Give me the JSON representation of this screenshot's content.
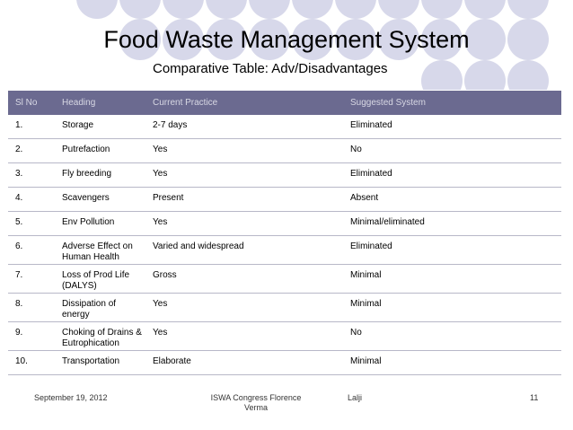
{
  "slide": {
    "title": "Food Waste Management System",
    "subtitle": "Comparative Table: Adv/Disadvantages"
  },
  "table": {
    "headers": [
      "Sl No",
      "Heading",
      "Current Practice",
      "Suggested System"
    ],
    "rows": [
      [
        "1.",
        "Storage",
        "2-7 days",
        "Eliminated"
      ],
      [
        "2.",
        "Putrefaction",
        "Yes",
        "No"
      ],
      [
        "3.",
        "Fly breeding",
        "Yes",
        "Eliminated"
      ],
      [
        "4.",
        "Scavengers",
        "Present",
        "Absent"
      ],
      [
        "5.",
        "Env Pollution",
        "Yes",
        "Minimal/eliminated"
      ],
      [
        "6.",
        "Adverse Effect on Human Health",
        "Varied and widespread",
        "Eliminated"
      ],
      [
        "7.",
        "Loss of Prod Life (DALYS)",
        "Gross",
        "Minimal"
      ],
      [
        "8.",
        "Dissipation  of energy",
        "Yes",
        "Minimal"
      ],
      [
        "9.",
        "Choking of Drains & Eutrophication",
        "Yes",
        "No"
      ],
      [
        "10.",
        "Transportation",
        "Elaborate",
        "Minimal"
      ]
    ]
  },
  "footer": {
    "date": "September 19, 2012",
    "event": "ISWA Congress Florence",
    "author_first": "Lalji",
    "author_last": "Verma",
    "page": "11"
  },
  "colors": {
    "header_bg": "#6b6a90",
    "header_text": "#d8d8e4",
    "circle_fill": "#d7d8ea"
  }
}
